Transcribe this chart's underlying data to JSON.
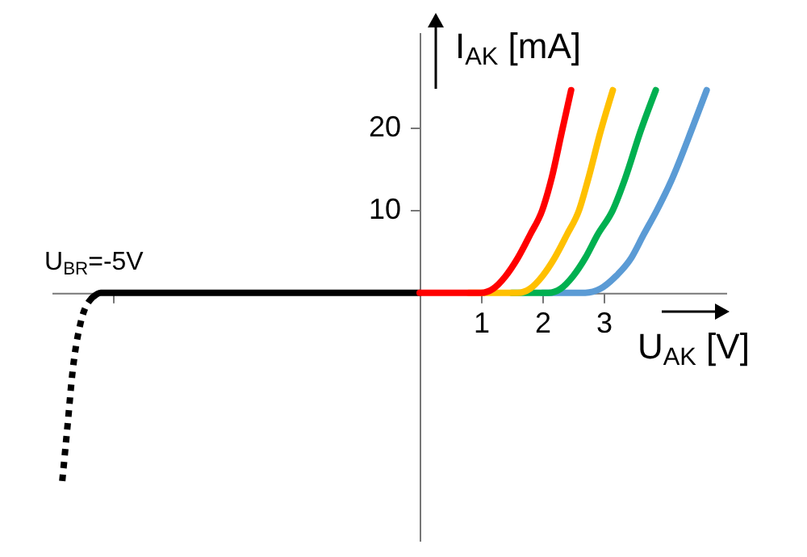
{
  "chart_data": {
    "type": "line",
    "xlabel": "U$_{AK}$ [V]",
    "ylabel": "I$_{AK}$ [mA]",
    "annotations": [
      {
        "text": "U$_{BR}$=-5V",
        "x": -5,
        "y": 0
      }
    ],
    "xlim": [
      -6,
      5
    ],
    "ylim": [
      -30,
      31.5
    ],
    "xticks": [
      {
        "value": -5,
        "label": null
      },
      1,
      2,
      3
    ],
    "yticks": [
      10,
      20
    ],
    "grid": false,
    "marker": "none",
    "series": [
      {
        "color": "#000000",
        "line_style": "solid",
        "x": [
          -5.34,
          -5.2,
          -4,
          0
        ],
        "values": [
          -0.6,
          0,
          0,
          0
        ]
      },
      {
        "color": "#000000",
        "line_style": "dotted",
        "x": [
          -5.34,
          -5.53,
          -5.66,
          -5.74,
          -5.83
        ],
        "values": [
          -0.6,
          -3.7,
          -9.6,
          -16,
          -23
        ]
      },
      {
        "color": "#5b9bd5",
        "line_style": "solid",
        "x": [
          2.0,
          2.7,
          2.95,
          3.2,
          3.45,
          3.65,
          3.87,
          4.1,
          4.45,
          4.68
        ],
        "values": [
          0,
          0,
          0.5,
          2,
          4.2,
          7,
          10,
          13.5,
          20,
          24.5
        ]
      },
      {
        "color": "#00b050",
        "line_style": "solid",
        "x": [
          1.5,
          2.1,
          2.3,
          2.5,
          2.7,
          2.9,
          3.15,
          3.35,
          3.6,
          3.85
        ],
        "values": [
          0,
          0,
          0.5,
          2,
          4.2,
          7,
          10,
          13.8,
          19.5,
          24.5
        ]
      },
      {
        "color": "#ffc000",
        "line_style": "solid",
        "x": [
          0.8,
          1.6,
          1.8,
          2.0,
          2.2,
          2.4,
          2.6,
          2.75,
          2.95,
          3.15
        ],
        "values": [
          0,
          0,
          0.5,
          2,
          4.2,
          7,
          10,
          13.8,
          19.5,
          24.5
        ]
      },
      {
        "color": "#ff0000",
        "line_style": "solid",
        "x": [
          0,
          1,
          1.2,
          1.4,
          1.6,
          1.8,
          2.0,
          2.15,
          2.32,
          2.47
        ],
        "values": [
          0,
          0,
          0.5,
          2,
          4.2,
          7,
          10,
          13.8,
          19.5,
          24.5
        ]
      }
    ]
  }
}
